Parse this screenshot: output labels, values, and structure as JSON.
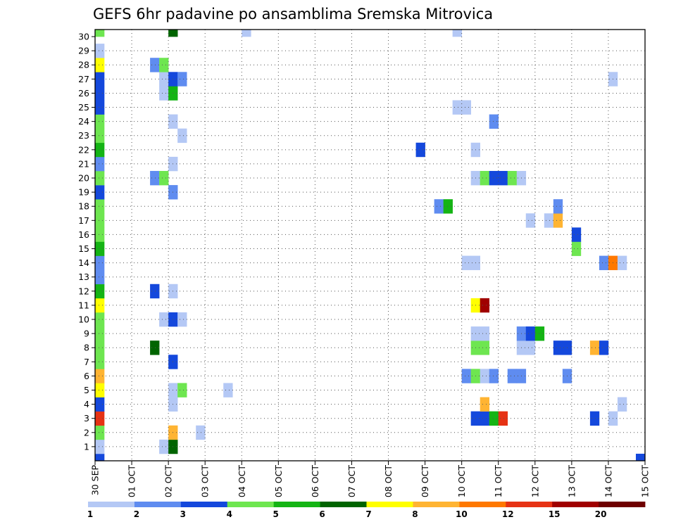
{
  "chart_data": {
    "type": "heatmap",
    "title": "GEFS 6hr padavine po ansamblima Sremska Mitrovica",
    "x_ticks": [
      "30 SEP",
      "01 OCT",
      "02 OCT",
      "03 OCT",
      "04 OCT",
      "05 OCT",
      "06 OCT",
      "07 OCT",
      "08 OCT",
      "09 OCT",
      "10 OCT",
      "11 OCT",
      "12 OCT",
      "13 OCT",
      "14 OCT",
      "15 OCT"
    ],
    "x_range": [
      "2020-09-30 00Z",
      "2020-10-15 00Z"
    ],
    "y_ticks": [
      1,
      2,
      3,
      4,
      5,
      6,
      7,
      8,
      9,
      10,
      11,
      12,
      13,
      14,
      15,
      16,
      17,
      18,
      19,
      20,
      21,
      22,
      23,
      24,
      25,
      26,
      27,
      28,
      29,
      30
    ],
    "y_range": [
      0,
      30
    ],
    "grid": true,
    "colorbar": {
      "labels": [
        "1",
        "2",
        "3",
        "4",
        "5",
        "6",
        "7",
        "8",
        "10",
        "12",
        "15",
        "20"
      ],
      "colors": [
        "#b4c8f5",
        "#5f8cf0",
        "#1448dc",
        "#6ee650",
        "#14b414",
        "#006400",
        "#ffff00",
        "#ffb432",
        "#ff7800",
        "#e63214",
        "#a00000",
        "#6e0000"
      ]
    },
    "cells": [
      {
        "m": 0,
        "t": 0,
        "c": 2
      },
      {
        "m": 1,
        "t": 0,
        "c": 0
      },
      {
        "m": 1,
        "t": 7,
        "c": 0
      },
      {
        "m": 1,
        "t": 8,
        "c": 5
      },
      {
        "m": 2,
        "t": 0,
        "c": 3
      },
      {
        "m": 2,
        "t": 11,
        "c": 0
      },
      {
        "m": 2,
        "t": 8,
        "c": 7
      },
      {
        "m": 3,
        "t": 0,
        "c": 9
      },
      {
        "m": 3,
        "t": 41,
        "c": 2
      },
      {
        "m": 3,
        "t": 42,
        "c": 2
      },
      {
        "m": 3,
        "t": 43,
        "c": 4
      },
      {
        "m": 3,
        "t": 44,
        "c": 9
      },
      {
        "m": 3,
        "t": 54,
        "c": 2
      },
      {
        "m": 3,
        "t": 56,
        "c": 0
      },
      {
        "m": 4,
        "t": 0,
        "c": 2
      },
      {
        "m": 4,
        "t": 8,
        "c": 0
      },
      {
        "m": 4,
        "t": 42,
        "c": 7
      },
      {
        "m": 4,
        "t": 57,
        "c": 0
      },
      {
        "m": 5,
        "t": 0,
        "c": 6
      },
      {
        "m": 5,
        "t": 8,
        "c": 0
      },
      {
        "m": 5,
        "t": 9,
        "c": 3
      },
      {
        "m": 5,
        "t": 14,
        "c": 0
      },
      {
        "m": 6,
        "t": 0,
        "c": 7
      },
      {
        "m": 6,
        "t": 40,
        "c": 1
      },
      {
        "m": 6,
        "t": 41,
        "c": 3
      },
      {
        "m": 6,
        "t": 42,
        "c": 0
      },
      {
        "m": 6,
        "t": 43,
        "c": 1
      },
      {
        "m": 6,
        "t": 45,
        "c": 1
      },
      {
        "m": 6,
        "t": 46,
        "c": 1
      },
      {
        "m": 6,
        "t": 51,
        "c": 1
      },
      {
        "m": 7,
        "t": 0,
        "c": 3
      },
      {
        "m": 7,
        "t": 8,
        "c": 2
      },
      {
        "m": 8,
        "t": 0,
        "c": 3
      },
      {
        "m": 8,
        "t": 6,
        "c": 5
      },
      {
        "m": 8,
        "t": 41,
        "c": 3
      },
      {
        "m": 8,
        "t": 42,
        "c": 3
      },
      {
        "m": 8,
        "t": 46,
        "c": 0
      },
      {
        "m": 8,
        "t": 47,
        "c": 0
      },
      {
        "m": 8,
        "t": 50,
        "c": 2
      },
      {
        "m": 8,
        "t": 51,
        "c": 2
      },
      {
        "m": 8,
        "t": 54,
        "c": 7
      },
      {
        "m": 8,
        "t": 55,
        "c": 2
      },
      {
        "m": 9,
        "t": 0,
        "c": 3
      },
      {
        "m": 9,
        "t": 41,
        "c": 0
      },
      {
        "m": 9,
        "t": 42,
        "c": 0
      },
      {
        "m": 9,
        "t": 46,
        "c": 1
      },
      {
        "m": 9,
        "t": 47,
        "c": 2
      },
      {
        "m": 9,
        "t": 48,
        "c": 4
      },
      {
        "m": 10,
        "t": 0,
        "c": 3
      },
      {
        "m": 10,
        "t": 7,
        "c": 0
      },
      {
        "m": 10,
        "t": 8,
        "c": 2
      },
      {
        "m": 10,
        "t": 9,
        "c": 0
      },
      {
        "m": 11,
        "t": 0,
        "c": 6
      },
      {
        "m": 11,
        "t": 41,
        "c": 6
      },
      {
        "m": 11,
        "t": 42,
        "c": 10
      },
      {
        "m": 12,
        "t": 0,
        "c": 4
      },
      {
        "m": 12,
        "t": 6,
        "c": 2
      },
      {
        "m": 12,
        "t": 8,
        "c": 0
      },
      {
        "m": 13,
        "t": 0,
        "c": 1
      },
      {
        "m": 14,
        "t": 0,
        "c": 1
      },
      {
        "m": 14,
        "t": 40,
        "c": 0
      },
      {
        "m": 14,
        "t": 41,
        "c": 0
      },
      {
        "m": 14,
        "t": 55,
        "c": 1
      },
      {
        "m": 14,
        "t": 56,
        "c": 8
      },
      {
        "m": 14,
        "t": 57,
        "c": 0
      },
      {
        "m": 15,
        "t": 0,
        "c": 4
      },
      {
        "m": 15,
        "t": 52,
        "c": 3
      },
      {
        "m": 16,
        "t": 0,
        "c": 3
      },
      {
        "m": 16,
        "t": 52,
        "c": 2
      },
      {
        "m": 17,
        "t": 0,
        "c": 3
      },
      {
        "m": 17,
        "t": 47,
        "c": 0
      },
      {
        "m": 17,
        "t": 49,
        "c": 0
      },
      {
        "m": 17,
        "t": 50,
        "c": 7
      },
      {
        "m": 18,
        "t": 0,
        "c": 3
      },
      {
        "m": 18,
        "t": 37,
        "c": 1
      },
      {
        "m": 18,
        "t": 38,
        "c": 4
      },
      {
        "m": 18,
        "t": 50,
        "c": 1
      },
      {
        "m": 19,
        "t": 0,
        "c": 2
      },
      {
        "m": 19,
        "t": 8,
        "c": 1
      },
      {
        "m": 20,
        "t": 0,
        "c": 3
      },
      {
        "m": 20,
        "t": 6,
        "c": 1
      },
      {
        "m": 20,
        "t": 7,
        "c": 3
      },
      {
        "m": 20,
        "t": 41,
        "c": 0
      },
      {
        "m": 20,
        "t": 42,
        "c": 3
      },
      {
        "m": 20,
        "t": 43,
        "c": 2
      },
      {
        "m": 20,
        "t": 44,
        "c": 2
      },
      {
        "m": 20,
        "t": 45,
        "c": 3
      },
      {
        "m": 20,
        "t": 46,
        "c": 0
      },
      {
        "m": 21,
        "t": 0,
        "c": 1
      },
      {
        "m": 21,
        "t": 8,
        "c": 0
      },
      {
        "m": 22,
        "t": 0,
        "c": 4
      },
      {
        "m": 22,
        "t": 35,
        "c": 2
      },
      {
        "m": 22,
        "t": 41,
        "c": 0
      },
      {
        "m": 23,
        "t": 0,
        "c": 3
      },
      {
        "m": 23,
        "t": 9,
        "c": 0
      },
      {
        "m": 24,
        "t": 0,
        "c": 3
      },
      {
        "m": 24,
        "t": 8,
        "c": 0
      },
      {
        "m": 24,
        "t": 43,
        "c": 1
      },
      {
        "m": 25,
        "t": 0,
        "c": 2
      },
      {
        "m": 25,
        "t": 39,
        "c": 0
      },
      {
        "m": 25,
        "t": 40,
        "c": 0
      },
      {
        "m": 26,
        "t": 0,
        "c": 2
      },
      {
        "m": 26,
        "t": 7,
        "c": 0
      },
      {
        "m": 26,
        "t": 8,
        "c": 4
      },
      {
        "m": 27,
        "t": 0,
        "c": 2
      },
      {
        "m": 27,
        "t": 7,
        "c": 0
      },
      {
        "m": 27,
        "t": 8,
        "c": 2
      },
      {
        "m": 27,
        "t": 9,
        "c": 1
      },
      {
        "m": 27,
        "t": 56,
        "c": 0
      },
      {
        "m": 28,
        "t": 0,
        "c": 6
      },
      {
        "m": 28,
        "t": 6,
        "c": 1
      },
      {
        "m": 28,
        "t": 7,
        "c": 3
      },
      {
        "m": 29,
        "t": 0,
        "c": 0
      },
      {
        "m": 30,
        "t": 0,
        "c": 3
      },
      {
        "m": 30,
        "t": 8,
        "c": 5
      },
      {
        "m": 30,
        "t": 16,
        "c": 0
      },
      {
        "m": 30,
        "t": 39,
        "c": 0
      },
      {
        "m": 0,
        "t": 59,
        "c": 2
      }
    ]
  }
}
